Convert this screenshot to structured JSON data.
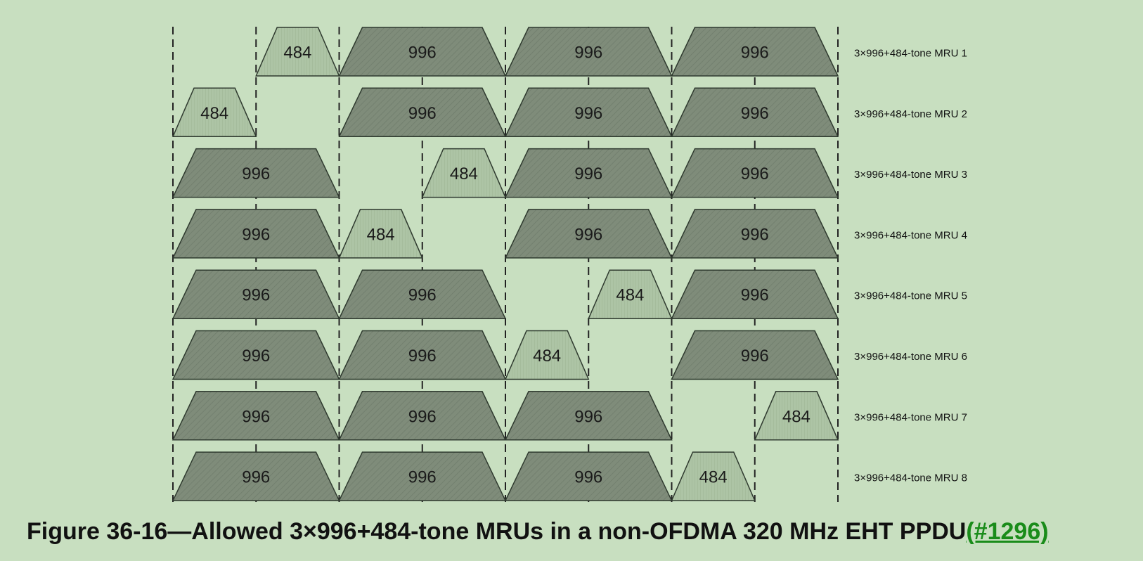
{
  "diagram": {
    "rows": [
      {
        "label": "3×996+484-tone MRU 1",
        "segments": [
          {
            "start": 1,
            "width": 1,
            "text": "484"
          },
          {
            "start": 2,
            "width": 2,
            "text": "996"
          },
          {
            "start": 4,
            "width": 2,
            "text": "996"
          },
          {
            "start": 6,
            "width": 2,
            "text": "996"
          }
        ]
      },
      {
        "label": "3×996+484-tone MRU 2",
        "segments": [
          {
            "start": 0,
            "width": 1,
            "text": "484"
          },
          {
            "start": 2,
            "width": 2,
            "text": "996"
          },
          {
            "start": 4,
            "width": 2,
            "text": "996"
          },
          {
            "start": 6,
            "width": 2,
            "text": "996"
          }
        ]
      },
      {
        "label": "3×996+484-tone MRU 3",
        "segments": [
          {
            "start": 0,
            "width": 2,
            "text": "996"
          },
          {
            "start": 3,
            "width": 1,
            "text": "484"
          },
          {
            "start": 4,
            "width": 2,
            "text": "996"
          },
          {
            "start": 6,
            "width": 2,
            "text": "996"
          }
        ]
      },
      {
        "label": "3×996+484-tone MRU 4",
        "segments": [
          {
            "start": 0,
            "width": 2,
            "text": "996"
          },
          {
            "start": 2,
            "width": 1,
            "text": "484"
          },
          {
            "start": 4,
            "width": 2,
            "text": "996"
          },
          {
            "start": 6,
            "width": 2,
            "text": "996"
          }
        ]
      },
      {
        "label": "3×996+484-tone MRU 5",
        "segments": [
          {
            "start": 0,
            "width": 2,
            "text": "996"
          },
          {
            "start": 2,
            "width": 2,
            "text": "996"
          },
          {
            "start": 5,
            "width": 1,
            "text": "484"
          },
          {
            "start": 6,
            "width": 2,
            "text": "996"
          }
        ]
      },
      {
        "label": "3×996+484-tone MRU 6",
        "segments": [
          {
            "start": 0,
            "width": 2,
            "text": "996"
          },
          {
            "start": 2,
            "width": 2,
            "text": "996"
          },
          {
            "start": 4,
            "width": 1,
            "text": "484"
          },
          {
            "start": 6,
            "width": 2,
            "text": "996"
          }
        ]
      },
      {
        "label": "3×996+484-tone MRU 7",
        "segments": [
          {
            "start": 0,
            "width": 2,
            "text": "996"
          },
          {
            "start": 2,
            "width": 2,
            "text": "996"
          },
          {
            "start": 4,
            "width": 2,
            "text": "996"
          },
          {
            "start": 7,
            "width": 1,
            "text": "484"
          }
        ]
      },
      {
        "label": "3×996+484-tone MRU 8",
        "segments": [
          {
            "start": 0,
            "width": 2,
            "text": "996"
          },
          {
            "start": 2,
            "width": 2,
            "text": "996"
          },
          {
            "start": 4,
            "width": 2,
            "text": "996"
          },
          {
            "start": 6,
            "width": 1,
            "text": "484"
          }
        ]
      }
    ],
    "colors": {
      "background": "#c8dfc0",
      "large_fill": "#7f8c7a",
      "small_fill": "#adc4a5",
      "stroke": "#2f3a2f"
    }
  },
  "caption": {
    "text": "Figure 36-16—Allowed 3×996+484-tone MRUs in a non-OFDMA 320 MHz EHT PPDU",
    "link": "(#1296)"
  }
}
